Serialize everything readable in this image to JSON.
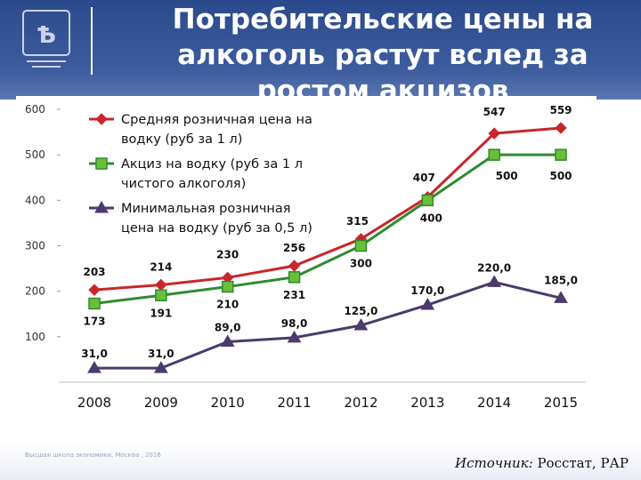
{
  "slide": {
    "title_line1": "Потребительские цены на",
    "title_line2": "алкоголь растут вслед за",
    "title_line3": "ростом акцизов",
    "footer_text": "Высшая школа экономики, Москва , 2016",
    "source_label": "Источник:",
    "source_text": " Росстат, РАР"
  },
  "colors": {
    "header": "#2b4a8c",
    "retail": "#c8262a",
    "excise": "#2e8b2e",
    "excise_marker": "#6abf3a",
    "minimum": "#4a3b6b"
  },
  "chart_data": {
    "type": "line",
    "categories": [
      "2008",
      "2009",
      "2010",
      "2011",
      "2012",
      "2013",
      "2014",
      "2015"
    ],
    "y_tick_labels": [
      "100",
      "200",
      "300",
      "400",
      "500",
      "600"
    ],
    "ylim": [
      0,
      600
    ],
    "grid": false,
    "legend_position": "top-left",
    "series": [
      {
        "name": "Средняя розничная цена на водку (руб за 1 л)",
        "legend_lines": [
          "Средняя розничная цена на",
          "водку (руб за 1 л)"
        ],
        "marker": "diamond",
        "values": [
          203,
          214,
          230,
          256,
          315,
          407,
          547,
          559
        ],
        "labels": [
          "203",
          "214",
          "230",
          "256",
          "315",
          "407",
          "547",
          "559"
        ]
      },
      {
        "name": "Акциз на водку (руб за 1 л чистого алкоголя)",
        "legend_lines": [
          "Акциз на водку (руб за 1 л",
          "чистого алкоголя)"
        ],
        "marker": "square",
        "values": [
          173,
          191,
          210,
          231,
          300,
          400,
          500,
          500
        ],
        "labels": [
          "173",
          "191",
          "210",
          "231",
          "300",
          "400",
          "500",
          "500"
        ]
      },
      {
        "name": "Минимальная розничная цена на водку (руб за 0,5 л)",
        "legend_lines": [
          "Минимальная розничная",
          "цена на водку (руб за 0,5 л)"
        ],
        "marker": "triangle",
        "values": [
          31,
          31,
          89,
          98,
          125,
          170,
          220,
          185
        ],
        "labels": [
          "31,0",
          "31,0",
          "89,0",
          "98,0",
          "125,0",
          "170,0",
          "220,0",
          "185,0"
        ]
      }
    ]
  }
}
